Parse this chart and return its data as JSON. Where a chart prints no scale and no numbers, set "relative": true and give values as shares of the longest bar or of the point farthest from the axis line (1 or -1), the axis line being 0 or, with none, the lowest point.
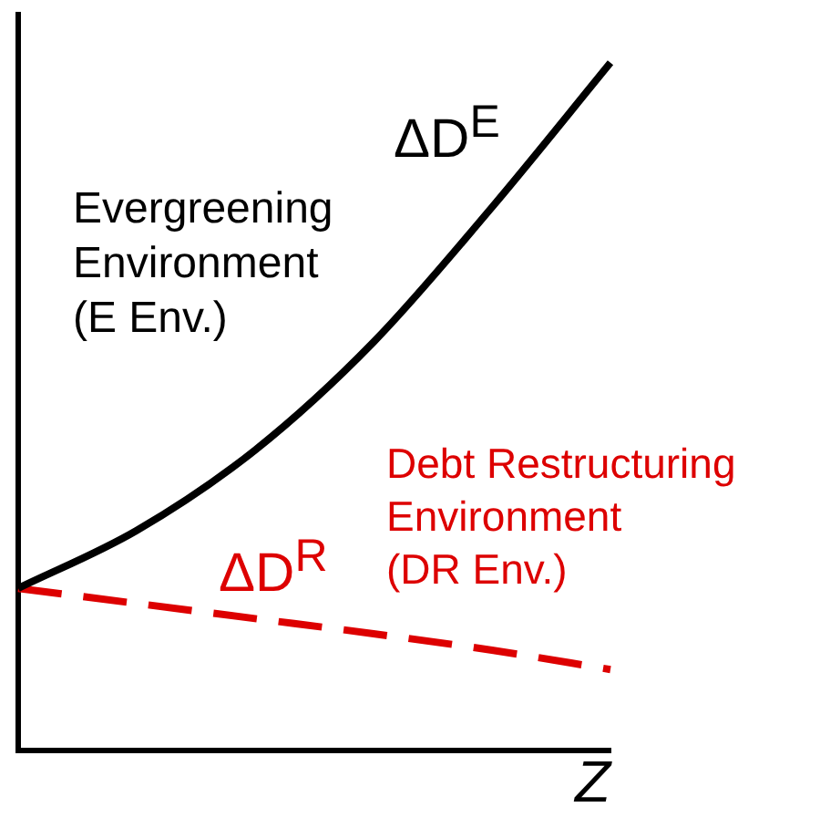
{
  "chart_data": {
    "type": "line",
    "relative": true,
    "xlabel": "Z",
    "categories": [
      null,
      null,
      null,
      null,
      null,
      null
    ],
    "series": [
      {
        "name": "ΔD$^{E}$",
        "color": "#000000",
        "line_style": "solid",
        "values": [
          0.236,
          0.32,
          0.437,
          0.594,
          0.79,
          1
        ]
      },
      {
        "name": "ΔD$^{R}$",
        "color": "#dd0000",
        "line_style": "dashed",
        "values": [
          0.236,
          0.214,
          0.192,
          0.17,
          0.146,
          0.118
        ]
      }
    ],
    "annotations": [
      "Evergreening\nEnvironment\n(E Env.)",
      "Debt Restructuring\nEnvironment\n(DR Env.)"
    ],
    "legend": false,
    "grid": false,
    "marker": "none"
  }
}
